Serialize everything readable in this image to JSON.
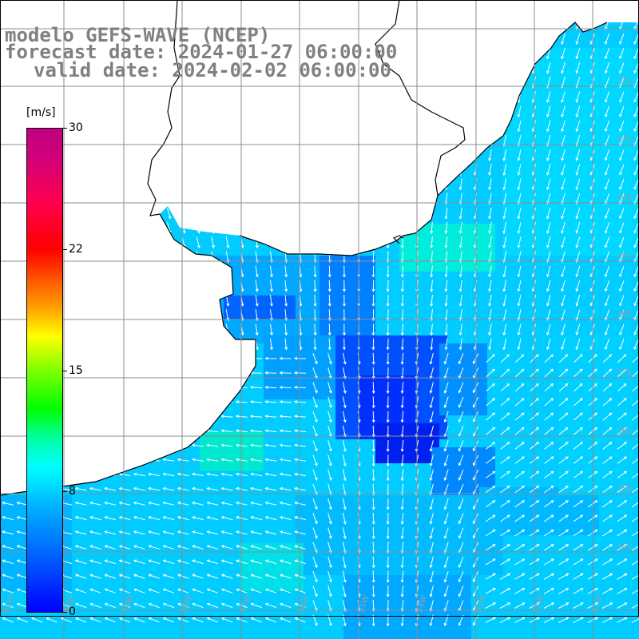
{
  "header": {
    "line1": "modelo GEFS-WAVE (NCEP)",
    "line2": "forecast date: 2024-01-27 06:00:00",
    "line3": "valid date: 2024-02-02 06:00:00"
  },
  "colorbar": {
    "unit": "[m/s]",
    "ticks": [
      "30",
      "22",
      "15",
      "8",
      "0"
    ],
    "tick_values": [
      30,
      22,
      15,
      8,
      0
    ],
    "min": 0,
    "max": 30
  },
  "map": {
    "variable": "wind speed and direction (arrows)",
    "colors": {
      "land": "#ffffff",
      "grid": "#8c8c8c",
      "coast": "#000000",
      "arrow": "#ffffff"
    },
    "lon_labels": [
      "61W",
      "60W",
      "59W",
      "58W",
      "57W",
      "56W",
      "55W",
      "54W",
      "53W",
      "52W",
      "51W"
    ],
    "lat_labels": [
      "32S",
      "33S",
      "34S",
      "35S",
      "36S",
      "37S",
      "38S",
      "39S",
      "40S"
    ]
  }
}
